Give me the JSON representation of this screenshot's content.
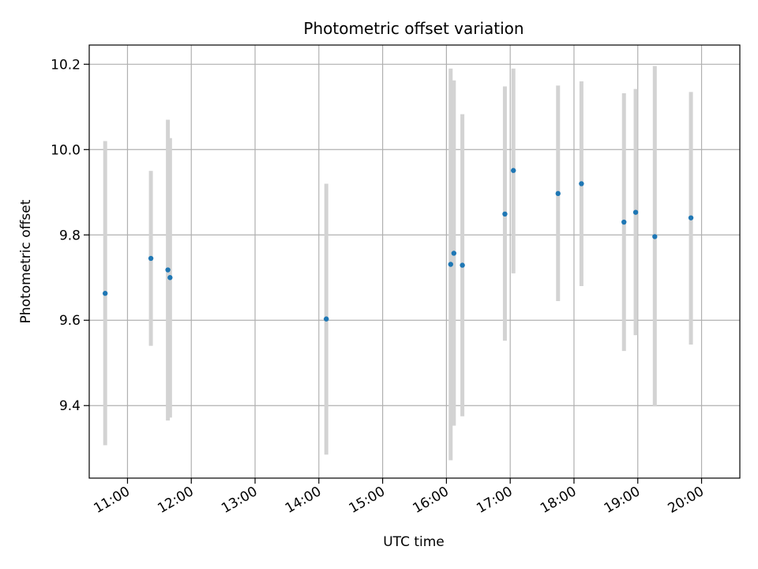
{
  "chart_data": {
    "type": "scatter",
    "title": "Photometric offset variation",
    "xlabel": "UTC time",
    "ylabel": "Photometric offset",
    "x_axis_type": "time",
    "xlim": [
      "10:24",
      "20:36"
    ],
    "ylim": [
      9.23,
      10.245
    ],
    "x_ticks": [
      "11:00",
      "12:00",
      "13:00",
      "14:00",
      "15:00",
      "16:00",
      "17:00",
      "18:00",
      "19:00",
      "20:00"
    ],
    "y_ticks": [
      9.4,
      9.6,
      9.8,
      10.0,
      10.2
    ],
    "grid": true,
    "legend": "none",
    "colors": {
      "point": "#1f77b4",
      "errorbar": "#d3d3d3",
      "grid": "#b0b0b0"
    },
    "points": [
      {
        "x": "10:39",
        "y": 9.663,
        "low": 9.307,
        "high": 10.02
      },
      {
        "x": "11:22",
        "y": 9.745,
        "low": 9.54,
        "high": 9.95
      },
      {
        "x": "11:38",
        "y": 9.718,
        "low": 9.365,
        "high": 10.07
      },
      {
        "x": "11:40",
        "y": 9.7,
        "low": 9.372,
        "high": 10.027
      },
      {
        "x": "14:07",
        "y": 9.603,
        "low": 9.285,
        "high": 9.92
      },
      {
        "x": "16:04",
        "y": 9.731,
        "low": 9.272,
        "high": 10.19
      },
      {
        "x": "16:07",
        "y": 9.757,
        "low": 9.353,
        "high": 10.162
      },
      {
        "x": "16:15",
        "y": 9.729,
        "low": 9.375,
        "high": 10.083
      },
      {
        "x": "16:55",
        "y": 9.849,
        "low": 9.552,
        "high": 10.148
      },
      {
        "x": "17:03",
        "y": 9.951,
        "low": 9.71,
        "high": 10.19
      },
      {
        "x": "17:45",
        "y": 9.897,
        "low": 9.645,
        "high": 10.15
      },
      {
        "x": "18:07",
        "y": 9.92,
        "low": 9.68,
        "high": 10.16
      },
      {
        "x": "18:47",
        "y": 9.83,
        "low": 9.528,
        "high": 10.132
      },
      {
        "x": "18:58",
        "y": 9.853,
        "low": 9.565,
        "high": 10.142
      },
      {
        "x": "19:16",
        "y": 9.796,
        "low": 9.398,
        "high": 10.196
      },
      {
        "x": "19:50",
        "y": 9.84,
        "low": 9.543,
        "high": 10.135
      }
    ]
  }
}
